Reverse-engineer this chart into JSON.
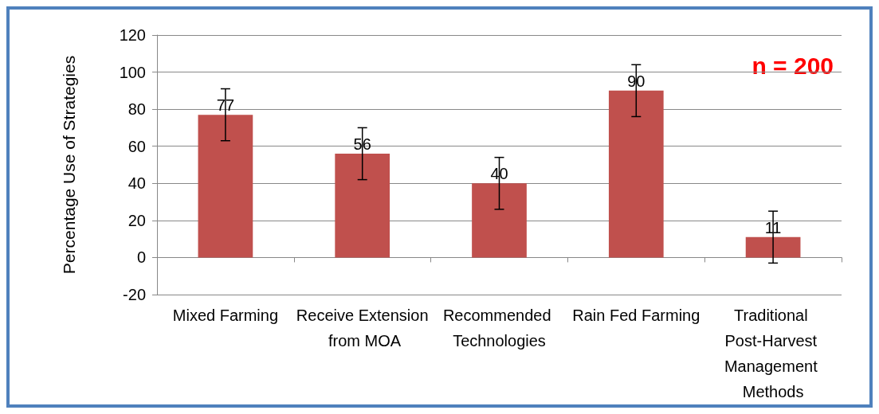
{
  "chart_data": {
    "type": "bar",
    "ylabel": "Percentage Use of Strategies",
    "categories": [
      "Mixed Farming",
      "Receive Extension from MOA",
      "Recommended Technologies",
      "Rain Fed Farming",
      "Traditional Post-Harvest Management Methods"
    ],
    "values": [
      77,
      56,
      40,
      90,
      11
    ],
    "errors": [
      14,
      14,
      14,
      14,
      14
    ],
    "color": "#c0504d",
    "ylim": [
      -20,
      120
    ],
    "yticks": [
      -20,
      0,
      20,
      40,
      60,
      80,
      100,
      120
    ],
    "grid": "y",
    "data_labels": true,
    "annotations": [
      "n = 200"
    ]
  }
}
